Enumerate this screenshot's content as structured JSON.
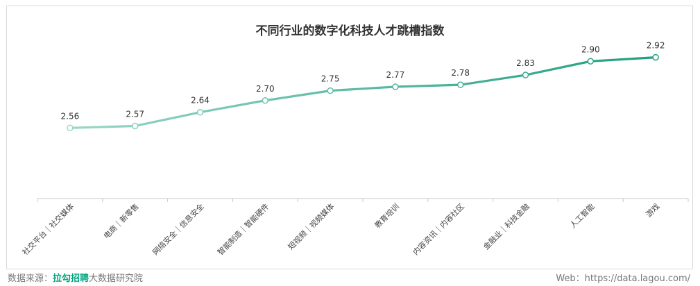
{
  "chart_data": {
    "type": "line",
    "title": "不同行业的数字化科技人才跳槽指数",
    "categories": [
      "社交平台｜社交媒体",
      "电商｜新零售",
      "网络安全｜信息安全",
      "智能制造｜智能硬件",
      "短视频｜视频媒体",
      "教育培训",
      "内容资讯｜内容社区",
      "金融业｜科技金融",
      "人工智能",
      "游戏"
    ],
    "series": [
      {
        "values": [
          2.56,
          2.57,
          2.64,
          2.7,
          2.75,
          2.77,
          2.78,
          2.83,
          2.9,
          2.92
        ]
      }
    ],
    "value_labels": [
      "2.56",
      "2.57",
      "2.64",
      "2.70",
      "2.75",
      "2.77",
      "2.78",
      "2.83",
      "2.90",
      "2.92"
    ],
    "xlabel": "",
    "ylabel": "",
    "ylim": [
      2.2,
      3.0
    ],
    "grid": false,
    "line_color_start": "#9ad7c8",
    "line_color_end": "#1f9e7f"
  },
  "footer": {
    "source_prefix": "数据来源：",
    "source_brand": "拉勾招聘",
    "source_suffix": "大数据研究院",
    "web": "Web：https://data.lagou.com/"
  }
}
